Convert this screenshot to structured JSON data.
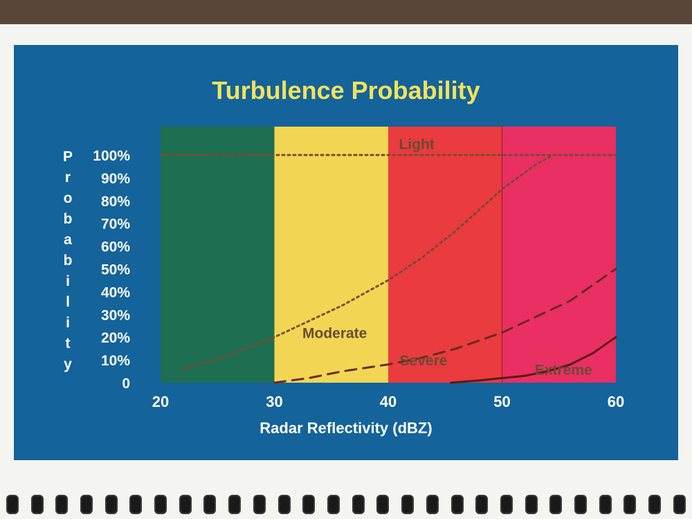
{
  "chart_data": {
    "type": "line",
    "title": "Turbulence Probability",
    "xlabel": "Radar Reflectivity (dBZ)",
    "ylabel": "Probability",
    "xlim": [
      20,
      60
    ],
    "ylim": [
      0,
      100
    ],
    "x_ticks": [
      "20",
      "30",
      "40",
      "50",
      "60"
    ],
    "y_ticks": [
      "0",
      "10%",
      "20%",
      "30%",
      "40%",
      "50%",
      "60%",
      "70%",
      "80%",
      "90%",
      "100%"
    ],
    "bands": [
      {
        "from": 20,
        "to": 30,
        "color": "#1e6e52"
      },
      {
        "from": 30,
        "to": 40,
        "color": "#f2d653"
      },
      {
        "from": 40,
        "to": 50,
        "color": "#ea3b3f"
      },
      {
        "from": 50,
        "to": 60,
        "color": "#ea2f62"
      }
    ],
    "series": [
      {
        "name": "Light",
        "style": "dotted",
        "color": "#7a4a30",
        "x": [
          20,
          60
        ],
        "y": [
          100,
          100
        ]
      },
      {
        "name": "Moderate",
        "style": "dotted",
        "color": "#7a4a30",
        "x": [
          22,
          26,
          30,
          33,
          36,
          40,
          43,
          46,
          50,
          53,
          54.5
        ],
        "y": [
          6,
          12,
          20,
          27,
          34,
          45,
          55,
          67,
          85,
          96,
          100
        ]
      },
      {
        "name": "Severe",
        "style": "dashed",
        "color": "#6a2a1e",
        "x": [
          30,
          33,
          36,
          40,
          43,
          46,
          50,
          53,
          56,
          60
        ],
        "y": [
          0,
          2,
          5,
          8,
          11,
          15,
          22,
          29,
          36,
          50
        ]
      },
      {
        "name": "Extreme",
        "style": "solid",
        "color": "#5a1a14",
        "x": [
          45.5,
          48,
          50,
          52,
          54,
          56,
          58,
          60
        ],
        "y": [
          0,
          1,
          2,
          3,
          5,
          8,
          13,
          20
        ]
      }
    ],
    "annotations": [
      {
        "text": "Light",
        "x": 42.5,
        "y": 105
      },
      {
        "text": "Moderate",
        "x": 35.3,
        "y": 22
      },
      {
        "text": "Severe",
        "x": 43.1,
        "y": 10
      },
      {
        "text": "Extreme",
        "x": 55.4,
        "y": 6
      }
    ]
  },
  "colors": {
    "panel": "#14639a",
    "title": "#f2e25c",
    "axis_text": "#ffffff",
    "annotation": "#6b4a34"
  }
}
